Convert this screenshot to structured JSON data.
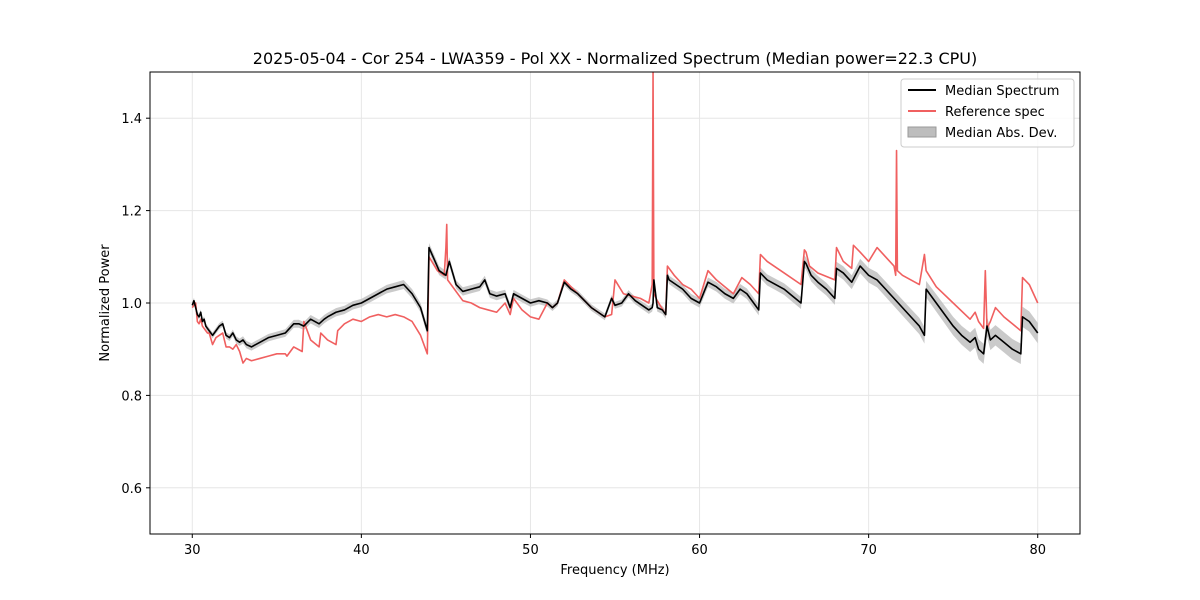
{
  "chart_data": {
    "type": "line",
    "title": "2025-05-04 - Cor 254 - LWA359 - Pol XX - Normalized Spectrum (Median power=22.3 CPU)",
    "xlabel": "Frequency (MHz)",
    "ylabel": "Normalized Power",
    "xlim": [
      27.5,
      82.5
    ],
    "ylim": [
      0.5,
      1.5
    ],
    "xticks": [
      30,
      40,
      50,
      60,
      70,
      80
    ],
    "yticks": [
      0.6,
      0.8,
      1.0,
      1.2,
      1.4
    ],
    "xtick_labels": [
      "30",
      "40",
      "50",
      "60",
      "70",
      "80"
    ],
    "ytick_labels": [
      "0.6",
      "0.8",
      "1.0",
      "1.2",
      "1.4"
    ],
    "grid": true,
    "legend_position": "top-right",
    "colors": {
      "median": "#000000",
      "reference": "#f06060",
      "mad": "#bdbdbd"
    },
    "legend": [
      {
        "label": "Median Spectrum",
        "style": "line",
        "color": "#000000"
      },
      {
        "label": "Reference spec",
        "style": "line",
        "color": "#f06060"
      },
      {
        "label": "Median Abs. Dev.",
        "style": "patch",
        "color": "#bdbdbd"
      }
    ],
    "series": [
      {
        "name": "Median Spectrum",
        "x": [
          30.0,
          30.1,
          30.2,
          30.3,
          30.4,
          30.5,
          30.6,
          30.7,
          30.8,
          30.9,
          31.0,
          31.2,
          31.4,
          31.6,
          31.8,
          32.0,
          32.2,
          32.4,
          32.6,
          32.8,
          33.0,
          33.2,
          33.5,
          34.0,
          34.5,
          35.0,
          35.5,
          36.0,
          36.3,
          36.6,
          37.0,
          37.5,
          37.8,
          38.0,
          38.5,
          39.0,
          39.5,
          40.0,
          40.5,
          41.0,
          41.5,
          42.0,
          42.5,
          43.0,
          43.5,
          43.9,
          44.0,
          44.3,
          44.6,
          45.0,
          45.2,
          45.6,
          46.0,
          46.5,
          47.0,
          47.3,
          47.6,
          48.0,
          48.5,
          48.8,
          49.0,
          49.5,
          50.0,
          50.5,
          51.0,
          51.3,
          51.6,
          52.0,
          52.4,
          52.8,
          53.2,
          53.6,
          54.0,
          54.4,
          54.8,
          55.0,
          55.4,
          55.8,
          56.2,
          56.6,
          57.0,
          57.2,
          57.25,
          57.3,
          57.5,
          57.8,
          58.0,
          58.1,
          58.2,
          58.6,
          59.0,
          59.5,
          60.0,
          60.5,
          61.0,
          61.5,
          62.0,
          62.4,
          62.8,
          63.2,
          63.5,
          63.6,
          64.0,
          64.5,
          65.0,
          65.5,
          66.0,
          66.2,
          66.3,
          66.6,
          67.0,
          67.5,
          68.0,
          68.1,
          68.5,
          69.0,
          69.5,
          70.0,
          70.5,
          71.0,
          71.5,
          72.0,
          72.5,
          73.0,
          73.3,
          73.4,
          73.8,
          74.2,
          74.6,
          75.0,
          75.5,
          76.0,
          76.3,
          76.5,
          76.8,
          77.0,
          77.2,
          77.5,
          78.0,
          78.5,
          79.0,
          79.1,
          79.5,
          80.0
        ],
        "values": [
          0.995,
          1.005,
          0.99,
          0.975,
          0.97,
          0.98,
          0.96,
          0.965,
          0.95,
          0.945,
          0.94,
          0.93,
          0.94,
          0.95,
          0.955,
          0.93,
          0.925,
          0.935,
          0.92,
          0.915,
          0.92,
          0.91,
          0.905,
          0.915,
          0.925,
          0.93,
          0.935,
          0.955,
          0.955,
          0.95,
          0.965,
          0.955,
          0.965,
          0.97,
          0.98,
          0.985,
          0.995,
          1.0,
          1.01,
          1.02,
          1.03,
          1.035,
          1.04,
          1.02,
          0.99,
          0.94,
          1.12,
          1.095,
          1.07,
          1.06,
          1.09,
          1.04,
          1.025,
          1.03,
          1.035,
          1.05,
          1.02,
          1.015,
          1.02,
          0.99,
          1.02,
          1.01,
          1.0,
          1.005,
          1.0,
          0.99,
          1.0,
          1.045,
          1.03,
          1.02,
          1.005,
          0.99,
          0.98,
          0.97,
          1.01,
          0.995,
          1.0,
          1.02,
          1.005,
          0.995,
          0.985,
          0.99,
          1.0,
          1.05,
          0.99,
          0.985,
          0.975,
          1.06,
          1.05,
          1.04,
          1.03,
          1.01,
          1.0,
          1.045,
          1.035,
          1.02,
          1.01,
          1.03,
          1.02,
          1.0,
          0.985,
          1.065,
          1.05,
          1.04,
          1.03,
          1.015,
          1.0,
          1.09,
          1.085,
          1.06,
          1.045,
          1.03,
          1.01,
          1.075,
          1.065,
          1.045,
          1.08,
          1.06,
          1.05,
          1.03,
          1.01,
          0.99,
          0.97,
          0.95,
          0.93,
          1.03,
          1.01,
          0.99,
          0.97,
          0.95,
          0.93,
          0.915,
          0.925,
          0.9,
          0.89,
          0.95,
          0.92,
          0.93,
          0.915,
          0.9,
          0.89,
          0.97,
          0.96,
          0.935
        ]
      },
      {
        "name": "Reference spec",
        "x": [
          30.0,
          30.1,
          30.2,
          30.3,
          30.4,
          30.5,
          30.6,
          30.7,
          30.8,
          30.9,
          31.0,
          31.2,
          31.4,
          31.6,
          31.8,
          32.0,
          32.2,
          32.4,
          32.6,
          32.8,
          33.0,
          33.2,
          33.5,
          34.0,
          34.5,
          35.0,
          35.5,
          35.6,
          36.0,
          36.5,
          36.6,
          37.0,
          37.5,
          37.6,
          38.0,
          38.5,
          38.6,
          39.0,
          39.5,
          40.0,
          40.5,
          41.0,
          41.5,
          42.0,
          42.5,
          43.0,
          43.5,
          43.9,
          44.0,
          44.5,
          44.9,
          45.0,
          45.05,
          45.1,
          45.5,
          46.0,
          46.5,
          47.0,
          47.5,
          48.0,
          48.5,
          48.8,
          49.0,
          49.5,
          50.0,
          50.5,
          51.0,
          51.3,
          51.6,
          52.0,
          52.4,
          52.8,
          53.2,
          53.6,
          54.0,
          54.4,
          54.8,
          55.0,
          55.5,
          56.0,
          56.5,
          57.0,
          57.2,
          57.25,
          57.3,
          57.5,
          58.0,
          58.1,
          58.5,
          59.0,
          59.5,
          60.0,
          60.5,
          61.0,
          61.5,
          62.0,
          62.5,
          63.0,
          63.5,
          63.6,
          64.0,
          65.0,
          66.0,
          66.2,
          66.3,
          66.5,
          67.0,
          68.0,
          68.1,
          68.5,
          69.0,
          69.1,
          69.5,
          70.0,
          70.5,
          71.0,
          71.5,
          71.6,
          71.65,
          71.7,
          72.0,
          73.0,
          73.3,
          73.4,
          74.0,
          75.0,
          76.0,
          76.3,
          76.5,
          76.8,
          76.9,
          77.0,
          77.2,
          77.5,
          78.0,
          78.5,
          79.0,
          79.1,
          79.5,
          80.0
        ],
        "values": [
          0.99,
          0.995,
          1.0,
          0.96,
          0.955,
          0.965,
          0.95,
          0.945,
          0.94,
          0.935,
          0.935,
          0.91,
          0.925,
          0.93,
          0.935,
          0.905,
          0.905,
          0.9,
          0.91,
          0.895,
          0.87,
          0.88,
          0.875,
          0.88,
          0.885,
          0.89,
          0.89,
          0.885,
          0.905,
          0.895,
          0.96,
          0.92,
          0.905,
          0.935,
          0.92,
          0.91,
          0.94,
          0.955,
          0.965,
          0.96,
          0.97,
          0.975,
          0.97,
          0.975,
          0.97,
          0.96,
          0.93,
          0.89,
          1.1,
          1.07,
          1.06,
          1.12,
          1.17,
          1.05,
          1.03,
          1.005,
          1.0,
          0.99,
          0.985,
          0.98,
          1.0,
          0.975,
          1.01,
          0.985,
          0.97,
          0.965,
          1.0,
          0.99,
          1.0,
          1.05,
          1.035,
          1.02,
          1.005,
          0.99,
          0.98,
          0.97,
          0.975,
          1.05,
          1.02,
          1.015,
          1.01,
          1.0,
          1.04,
          1.5,
          1.02,
          1.005,
          0.975,
          1.08,
          1.06,
          1.04,
          1.03,
          1.01,
          1.07,
          1.05,
          1.035,
          1.02,
          1.055,
          1.04,
          1.02,
          1.105,
          1.09,
          1.065,
          1.04,
          1.115,
          1.11,
          1.08,
          1.065,
          1.05,
          1.12,
          1.09,
          1.075,
          1.125,
          1.11,
          1.09,
          1.12,
          1.1,
          1.08,
          1.06,
          1.33,
          1.07,
          1.06,
          1.04,
          1.105,
          1.07,
          1.035,
          1.0,
          0.965,
          0.98,
          0.96,
          0.945,
          1.07,
          0.945,
          0.96,
          0.99,
          0.97,
          0.955,
          0.94,
          1.055,
          1.04,
          1.0
        ]
      }
    ],
    "mad_band": {
      "name": "Median Abs. Dev.",
      "x": [
        30.0,
        31.0,
        32.0,
        33.0,
        35.0,
        37.0,
        39.0,
        41.0,
        43.0,
        44.0,
        46.0,
        48.0,
        50.0,
        52.0,
        54.0,
        56.0,
        58.0,
        60.0,
        62.0,
        64.0,
        66.0,
        68.0,
        70.0,
        72.0,
        73.3,
        73.4,
        75.0,
        76.0,
        77.0,
        78.0,
        79.0,
        80.0
      ],
      "half_width": [
        0.006,
        0.006,
        0.007,
        0.008,
        0.008,
        0.009,
        0.009,
        0.009,
        0.01,
        0.01,
        0.009,
        0.009,
        0.008,
        0.007,
        0.007,
        0.008,
        0.009,
        0.01,
        0.011,
        0.012,
        0.013,
        0.014,
        0.016,
        0.017,
        0.018,
        0.018,
        0.02,
        0.021,
        0.022,
        0.022,
        0.022,
        0.022
      ]
    }
  }
}
